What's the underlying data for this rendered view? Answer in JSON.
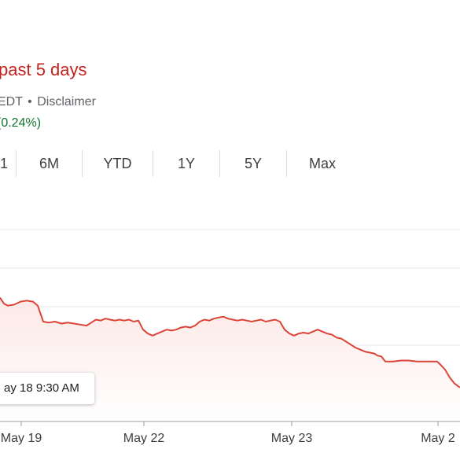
{
  "header": {
    "change_title": "past 5 days",
    "timezone_fragment": "EDT",
    "disclaimer_label": "Disclaimer",
    "change_percent": "0.24%)",
    "change_prefix": "("
  },
  "range_tabs": [
    {
      "label": "1",
      "selected": false
    },
    {
      "label": "6M",
      "selected": false
    },
    {
      "label": "YTD",
      "selected": false
    },
    {
      "label": "1Y",
      "selected": false
    },
    {
      "label": "5Y",
      "selected": false
    },
    {
      "label": "Max",
      "selected": false
    }
  ],
  "tooltip": {
    "text": "ay 18 9:30 AM"
  },
  "colors": {
    "line": "#db4437",
    "negative_text": "#c5221f",
    "positive_text": "#137333",
    "grid": "#e8eaed",
    "axis": "#9aa0a6"
  },
  "chart_data": {
    "type": "area",
    "x_tick_labels": [
      "May 19",
      "May 22",
      "May 23",
      "May 2"
    ],
    "points": [
      [
        0,
        0.62
      ],
      [
        5,
        0.59
      ],
      [
        10,
        0.58
      ],
      [
        18,
        0.585
      ],
      [
        26,
        0.6
      ],
      [
        34,
        0.605
      ],
      [
        42,
        0.6
      ],
      [
        48,
        0.58
      ],
      [
        55,
        0.5
      ],
      [
        62,
        0.495
      ],
      [
        70,
        0.5
      ],
      [
        78,
        0.49
      ],
      [
        86,
        0.495
      ],
      [
        94,
        0.49
      ],
      [
        102,
        0.485
      ],
      [
        110,
        0.48
      ],
      [
        116,
        0.495
      ],
      [
        122,
        0.51
      ],
      [
        128,
        0.505
      ],
      [
        134,
        0.515
      ],
      [
        140,
        0.51
      ],
      [
        146,
        0.505
      ],
      [
        152,
        0.51
      ],
      [
        158,
        0.505
      ],
      [
        164,
        0.51
      ],
      [
        170,
        0.5
      ],
      [
        176,
        0.505
      ],
      [
        182,
        0.46
      ],
      [
        188,
        0.44
      ],
      [
        194,
        0.43
      ],
      [
        200,
        0.44
      ],
      [
        206,
        0.45
      ],
      [
        212,
        0.46
      ],
      [
        218,
        0.455
      ],
      [
        224,
        0.46
      ],
      [
        230,
        0.47
      ],
      [
        236,
        0.475
      ],
      [
        242,
        0.47
      ],
      [
        248,
        0.48
      ],
      [
        254,
        0.5
      ],
      [
        260,
        0.51
      ],
      [
        266,
        0.505
      ],
      [
        272,
        0.515
      ],
      [
        278,
        0.52
      ],
      [
        284,
        0.525
      ],
      [
        290,
        0.515
      ],
      [
        296,
        0.51
      ],
      [
        302,
        0.505
      ],
      [
        308,
        0.51
      ],
      [
        314,
        0.505
      ],
      [
        320,
        0.5
      ],
      [
        326,
        0.505
      ],
      [
        332,
        0.51
      ],
      [
        338,
        0.5
      ],
      [
        344,
        0.505
      ],
      [
        350,
        0.51
      ],
      [
        356,
        0.5
      ],
      [
        362,
        0.46
      ],
      [
        368,
        0.44
      ],
      [
        374,
        0.43
      ],
      [
        380,
        0.44
      ],
      [
        386,
        0.445
      ],
      [
        392,
        0.44
      ],
      [
        398,
        0.45
      ],
      [
        404,
        0.46
      ],
      [
        410,
        0.45
      ],
      [
        416,
        0.44
      ],
      [
        422,
        0.435
      ],
      [
        428,
        0.42
      ],
      [
        434,
        0.415
      ],
      [
        440,
        0.4
      ],
      [
        446,
        0.385
      ],
      [
        452,
        0.37
      ],
      [
        458,
        0.36
      ],
      [
        464,
        0.35
      ],
      [
        470,
        0.345
      ],
      [
        476,
        0.34
      ],
      [
        480,
        0.33
      ],
      [
        485,
        0.325
      ],
      [
        490,
        0.3
      ],
      [
        500,
        0.3
      ],
      [
        510,
        0.305
      ],
      [
        520,
        0.305
      ],
      [
        530,
        0.3
      ],
      [
        540,
        0.3
      ],
      [
        550,
        0.3
      ],
      [
        556,
        0.3
      ],
      [
        560,
        0.285
      ],
      [
        566,
        0.26
      ],
      [
        572,
        0.22
      ],
      [
        578,
        0.19
      ],
      [
        585,
        0.17
      ]
    ],
    "x_range": [
      0,
      585
    ],
    "y_range": [
      0,
      1
    ],
    "grid": true,
    "note_y_units": "unlabeled (no y-axis values visible)"
  }
}
